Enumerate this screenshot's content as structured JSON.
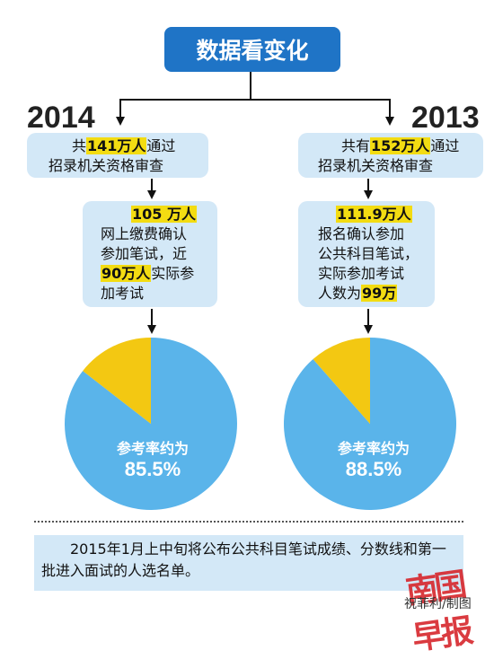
{
  "title": "数据看变化",
  "left": {
    "year": "2014",
    "box1_prefix": "共",
    "box1_highlight": "141万人",
    "box1_suffix": "通过",
    "box1_line2": "招录机关资格审查",
    "box2_highlight1": "105 万人",
    "box2_line2": "网上缴费确认",
    "box2_line3": "参加笔试，近",
    "box2_highlight2": "90万人",
    "box2_line4_suffix": "实际参",
    "box2_line5": "加考试",
    "pie_caption": "参考率约为",
    "pie_value": "85.5%"
  },
  "right": {
    "year": "2013",
    "box1_prefix": "共有",
    "box1_highlight": "152万人",
    "box1_suffix": "通过",
    "box1_line2": "招录机关资格审查",
    "box2_highlight1": "111.9万人",
    "box2_line2": "报名确认参加",
    "box2_line3": "公共科目笔试，",
    "box2_line4": "实际参加考试",
    "box2_line5_prefix": "人数为",
    "box2_highlight2": "99万",
    "pie_caption": "参考率约为",
    "pie_value": "88.5%"
  },
  "chart_data": [
    {
      "type": "pie",
      "title": "",
      "slices": [
        {
          "label": "参考率约为",
          "value": 85.5
        },
        {
          "label": "",
          "value": 14.5
        }
      ]
    },
    {
      "type": "pie",
      "title": "",
      "slices": [
        {
          "label": "参考率约为",
          "value": 88.5
        },
        {
          "label": "",
          "value": 11.5
        }
      ]
    }
  ],
  "colors": {
    "pie_main": "#5ab4ea",
    "pie_rest": "#f3c812",
    "title_bg": "#1f74c6",
    "box_bg": "#d3e8f7",
    "highlight": "#f3dc12"
  },
  "note": "2015年1月上中旬将公布公共科目笔试成绩、分数线和第一批进入面试的人选名单。",
  "logo_text": "南国早报",
  "credit": "祝菲利/制图"
}
